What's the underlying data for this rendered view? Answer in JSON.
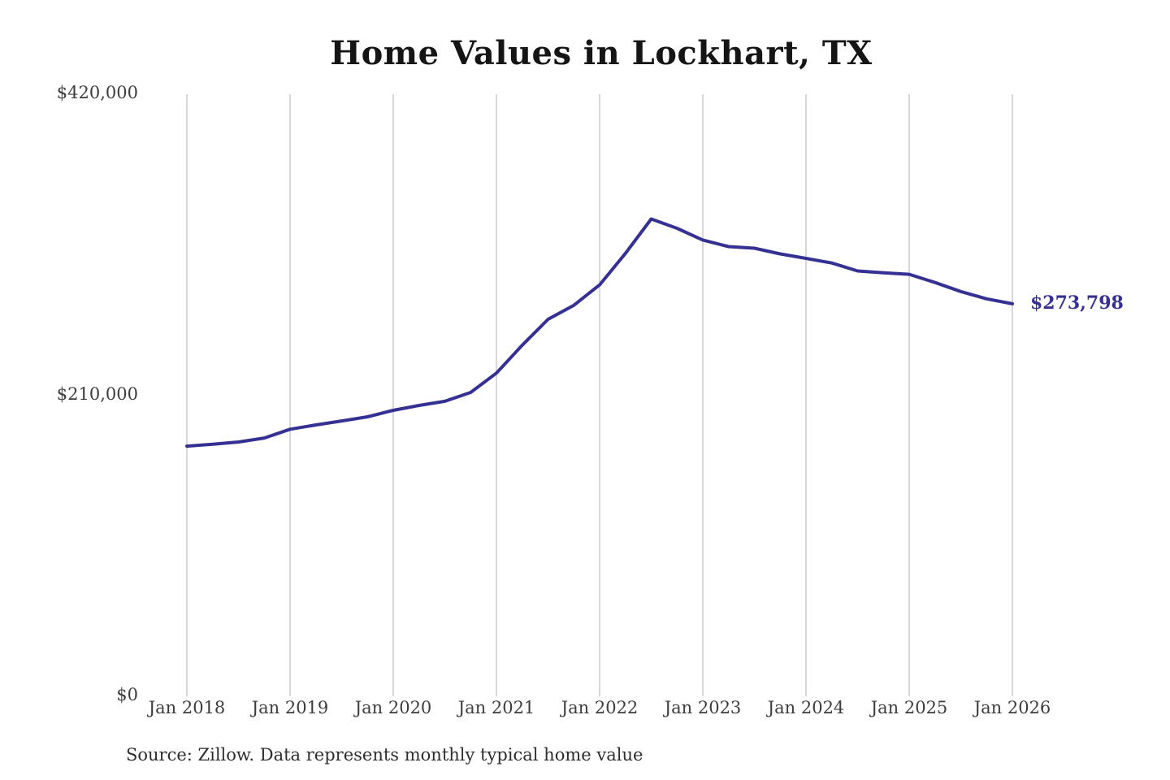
{
  "chart_data": {
    "type": "line",
    "title": "Home Values in Lockhart, TX",
    "source_note": "Source: Zillow. Data represents monthly typical home value",
    "end_label": "$273,798",
    "final_value": 273798,
    "line_color": "#353093",
    "grid_color": "#cccccc",
    "label_color": "#3d3d3d",
    "grid": "vertical-only",
    "legend": "none",
    "ylim": [
      0,
      420000
    ],
    "y_ticks": [
      {
        "label": "$420,000",
        "value": 420000
      },
      {
        "label": "$210,000",
        "value": 210000
      },
      {
        "label": "$0",
        "value": 0
      }
    ],
    "x_ticks": [
      "Jan 2018",
      "Jan 2019",
      "Jan 2020",
      "Jan 2021",
      "Jan 2022",
      "Jan 2023",
      "Jan 2024",
      "Jan 2025",
      "Jan 2026"
    ],
    "series": [
      {
        "name": "Monthly typical home value (USD)",
        "x_unit": "months since Jan 2018",
        "points": [
          [
            0,
            174500
          ],
          [
            3,
            175800
          ],
          [
            6,
            177400
          ],
          [
            9,
            180200
          ],
          [
            12,
            186300
          ],
          [
            15,
            189300
          ],
          [
            18,
            192100
          ],
          [
            21,
            195000
          ],
          [
            24,
            199500
          ],
          [
            27,
            202900
          ],
          [
            30,
            205800
          ],
          [
            33,
            212000
          ],
          [
            36,
            225500
          ],
          [
            39,
            245000
          ],
          [
            42,
            263000
          ],
          [
            45,
            272800
          ],
          [
            48,
            287000
          ],
          [
            51,
            309000
          ],
          [
            54,
            333000
          ],
          [
            57,
            326500
          ],
          [
            60,
            318300
          ],
          [
            63,
            313700
          ],
          [
            66,
            312600
          ],
          [
            69,
            308600
          ],
          [
            72,
            305500
          ],
          [
            75,
            302300
          ],
          [
            78,
            296700
          ],
          [
            81,
            295500
          ],
          [
            84,
            294400
          ],
          [
            87,
            288700
          ],
          [
            90,
            282400
          ],
          [
            93,
            277300
          ],
          [
            96,
            273798
          ]
        ]
      }
    ]
  }
}
